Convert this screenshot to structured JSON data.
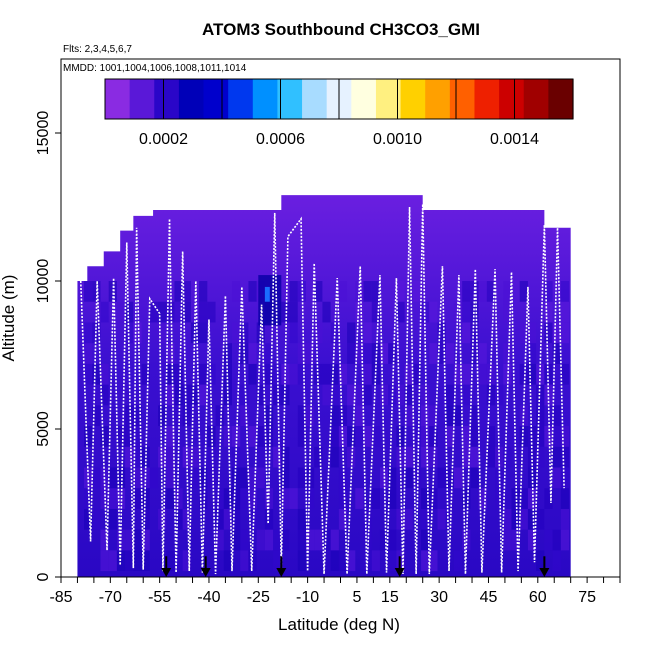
{
  "chart_data": {
    "type": "heatmap",
    "title": "ATOM3 Southbound CH3CO3_GMI",
    "flights_label": "Flts: 2,3,4,5,6,7",
    "mmdd_label": "MMDD: 1001,1004,1006,1008,1011,1014",
    "xlabel": "Latitude (deg N)",
    "ylabel": "Altitude (m)",
    "xlim": [
      -85,
      85
    ],
    "ylim": [
      0,
      17500
    ],
    "x_ticks": [
      -85,
      -70,
      -55,
      -40,
      -25,
      -10,
      5,
      15,
      30,
      45,
      60,
      75
    ],
    "x_tick_labels": [
      "-85",
      "-70",
      "-55",
      "-40",
      "-25",
      "-10",
      "5",
      "15",
      "30",
      "45",
      "60",
      "75"
    ],
    "y_ticks": [
      0,
      5000,
      10000,
      15000
    ],
    "y_tick_labels": [
      "0",
      "5000",
      "10000",
      "15000"
    ],
    "colorbar": {
      "range": [
        0,
        0.0016
      ],
      "ticks": [
        0.0002,
        0.0006,
        0.001,
        0.0014
      ],
      "tick_labels": [
        "0.0002",
        "0.0006",
        "0.0010",
        "0.0014"
      ],
      "colors": [
        "#8a2be2",
        "#5a18d8",
        "#2a06c8",
        "#0000b8",
        "#0000cc",
        "#0038ee",
        "#0090ff",
        "#30c0ff",
        "#a8dcff",
        "#e6f2ff",
        "#ffffe0",
        "#fff080",
        "#ffd000",
        "#ffa000",
        "#ff6000",
        "#ee2000",
        "#cc0000",
        "#a00000",
        "#6a0000"
      ]
    },
    "curtain_top_profile": [
      {
        "lat": -80,
        "alt": 10000
      },
      {
        "lat": -77,
        "alt": 10500
      },
      {
        "lat": -72,
        "alt": 11000
      },
      {
        "lat": -67,
        "alt": 11700
      },
      {
        "lat": -63,
        "alt": 12200
      },
      {
        "lat": -57,
        "alt": 12400
      },
      {
        "lat": -20,
        "alt": 12400
      },
      {
        "lat": -18,
        "alt": 12900
      },
      {
        "lat": 23,
        "alt": 12900
      },
      {
        "lat": 25,
        "alt": 12400
      },
      {
        "lat": 60,
        "alt": 12400
      },
      {
        "lat": 62,
        "alt": 11800
      },
      {
        "lat": 69,
        "alt": 11800
      }
    ],
    "flight_track_series": [
      {
        "lat": -79,
        "alt": 10000
      },
      {
        "lat": -76,
        "alt": 1200
      },
      {
        "lat": -74,
        "alt": 10000
      },
      {
        "lat": -71,
        "alt": 900
      },
      {
        "lat": -69,
        "alt": 10100
      },
      {
        "lat": -67,
        "alt": 400
      },
      {
        "lat": -65,
        "alt": 11300
      },
      {
        "lat": -63,
        "alt": 300
      },
      {
        "lat": -62,
        "alt": 11800
      },
      {
        "lat": -60,
        "alt": 250
      },
      {
        "lat": -58,
        "alt": 9400
      },
      {
        "lat": -55,
        "alt": 8900
      },
      {
        "lat": -54,
        "alt": 200
      },
      {
        "lat": -52,
        "alt": 12100
      },
      {
        "lat": -50,
        "alt": 150
      },
      {
        "lat": -48,
        "alt": 11000
      },
      {
        "lat": -46,
        "alt": 200
      },
      {
        "lat": -44,
        "alt": 10000
      },
      {
        "lat": -42,
        "alt": 150
      },
      {
        "lat": -40,
        "alt": 8700
      },
      {
        "lat": -38,
        "alt": 100
      },
      {
        "lat": -35,
        "alt": 9500
      },
      {
        "lat": -33,
        "alt": 200
      },
      {
        "lat": -30,
        "alt": 9800
      },
      {
        "lat": -27,
        "alt": 200
      },
      {
        "lat": -24,
        "alt": 9200
      },
      {
        "lat": -22,
        "alt": 1800
      },
      {
        "lat": -20,
        "alt": 12300
      },
      {
        "lat": -18,
        "alt": 300
      },
      {
        "lat": -16,
        "alt": 11500
      },
      {
        "lat": -12,
        "alt": 12100
      },
      {
        "lat": -10,
        "alt": 200
      },
      {
        "lat": -8,
        "alt": 10600
      },
      {
        "lat": -5,
        "alt": 100
      },
      {
        "lat": -1,
        "alt": 10100
      },
      {
        "lat": 2,
        "alt": 100
      },
      {
        "lat": 6,
        "alt": 10500
      },
      {
        "lat": 8,
        "alt": 100
      },
      {
        "lat": 12,
        "alt": 10200
      },
      {
        "lat": 14,
        "alt": 150
      },
      {
        "lat": 17,
        "alt": 10100
      },
      {
        "lat": 19,
        "alt": 100
      },
      {
        "lat": 21,
        "alt": 12500
      },
      {
        "lat": 23,
        "alt": 100
      },
      {
        "lat": 25,
        "alt": 12600
      },
      {
        "lat": 27,
        "alt": 100
      },
      {
        "lat": 31,
        "alt": 10500
      },
      {
        "lat": 33,
        "alt": 200
      },
      {
        "lat": 36,
        "alt": 10200
      },
      {
        "lat": 38,
        "alt": 100
      },
      {
        "lat": 41,
        "alt": 10400
      },
      {
        "lat": 43,
        "alt": 150
      },
      {
        "lat": 47,
        "alt": 10400
      },
      {
        "lat": 49,
        "alt": 150
      },
      {
        "lat": 52,
        "alt": 10300
      },
      {
        "lat": 54,
        "alt": 200
      },
      {
        "lat": 57,
        "alt": 9800
      },
      {
        "lat": 59,
        "alt": 500
      },
      {
        "lat": 62,
        "alt": 11900
      },
      {
        "lat": 64,
        "alt": 2500
      },
      {
        "lat": 66,
        "alt": 11800
      },
      {
        "lat": 68,
        "alt": 3000
      }
    ],
    "takeoff_landing_markers_lat": [
      -53,
      -41,
      -18,
      18,
      62
    ],
    "high_value_region": {
      "lat": [
        -25,
        -18
      ],
      "alt": [
        8500,
        10200
      ]
    }
  }
}
